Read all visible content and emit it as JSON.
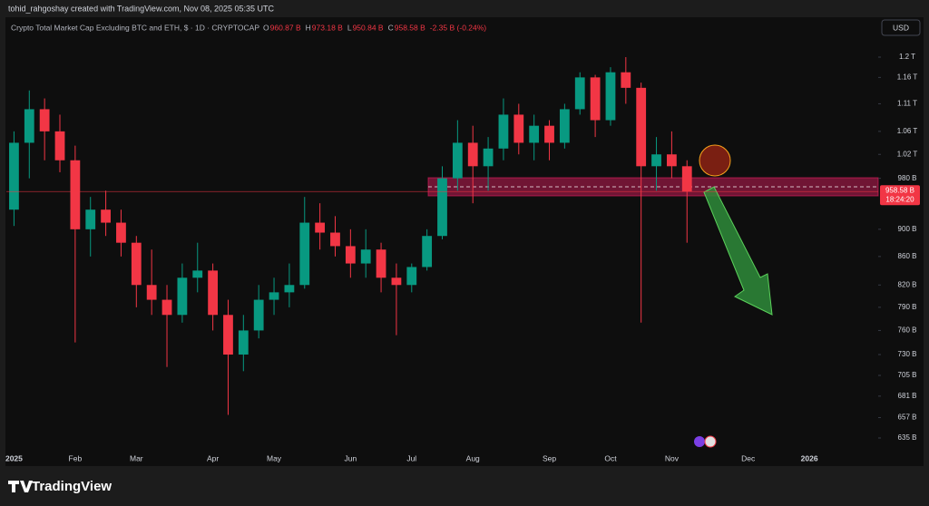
{
  "chart_data": {
    "type": "candlestick",
    "author": "tohid_rahgoshay created with TradingView.com, Nov 08, 2025 05:35 UTC",
    "title": "Crypto Total Market Cap Excluding BTC and ETH, $ · 1D · CRYPTOCAP",
    "ohlc_header": [
      {
        "key": "O",
        "text": "960.87 B"
      },
      {
        "key": "H",
        "text": "973.18 B"
      },
      {
        "key": "L",
        "text": "950.84 B"
      },
      {
        "key": "C",
        "text": "958.58 B"
      }
    ],
    "change": "-2.35 B (-0.24%)",
    "currency": "USD",
    "brand": "TradingView",
    "last_price": {
      "value": 958.58,
      "label": "958.58 B"
    },
    "countdown": "18:24:20",
    "log_scale": true,
    "grid": false,
    "up_color": "#089981",
    "down_color": "#f23645",
    "ylim": [
      635,
      1200
    ],
    "yticks": [
      {
        "value": 1200,
        "label": "1.2 T"
      },
      {
        "value": 1160,
        "label": "1.16 T"
      },
      {
        "value": 1110,
        "label": "1.11 T"
      },
      {
        "value": 1060,
        "label": "1.06 T"
      },
      {
        "value": 1020,
        "label": "1.02 T"
      },
      {
        "value": 980,
        "label": "980 B"
      },
      {
        "value": 900,
        "label": "900 B"
      },
      {
        "value": 860,
        "label": "860 B"
      },
      {
        "value": 820,
        "label": "820 B"
      },
      {
        "value": 790,
        "label": "790 B"
      },
      {
        "value": 760,
        "label": "760 B"
      },
      {
        "value": 730,
        "label": "730 B"
      },
      {
        "value": 705,
        "label": "705 B"
      },
      {
        "value": 681,
        "label": "681 B"
      },
      {
        "value": 657,
        "label": "657 B"
      },
      {
        "value": 635,
        "label": "635 B"
      }
    ],
    "categories": [
      "2025",
      null,
      null,
      null,
      "Feb",
      null,
      null,
      null,
      "Mar",
      null,
      null,
      null,
      null,
      "Apr",
      null,
      null,
      null,
      "May",
      null,
      null,
      null,
      null,
      "Jun",
      null,
      null,
      null,
      "Jul",
      null,
      null,
      null,
      "Aug",
      null,
      null,
      null,
      null,
      "Sep",
      null,
      null,
      null,
      "Oct",
      null,
      null,
      null,
      "Nov",
      null,
      null,
      null,
      null,
      "Dec",
      null,
      null,
      null,
      "2026",
      null,
      null,
      null,
      null
    ],
    "open": [
      930,
      1040,
      1100,
      1060,
      1010,
      900,
      930,
      910,
      880,
      820,
      800,
      780,
      830,
      840,
      780,
      730,
      760,
      800,
      810,
      820,
      910,
      895,
      875,
      850,
      870,
      830,
      820,
      845,
      890,
      980,
      1040,
      1000,
      1030,
      1090,
      1040,
      1070,
      1040,
      1100,
      1160,
      1080,
      1170,
      1140,
      1000,
      1020,
      1000,
      null,
      null,
      null,
      null,
      null,
      null,
      null,
      null,
      null,
      null,
      null,
      null
    ],
    "high": [
      1060,
      1135,
      1120,
      1090,
      1035,
      950,
      960,
      930,
      890,
      870,
      820,
      850,
      880,
      850,
      800,
      780,
      820,
      830,
      850,
      950,
      940,
      920,
      900,
      900,
      880,
      850,
      850,
      900,
      1000,
      1080,
      1070,
      1050,
      1120,
      1110,
      1090,
      1080,
      1110,
      1170,
      1165,
      1180,
      1200,
      1150,
      1050,
      1060,
      1010,
      null,
      null,
      null,
      null,
      null,
      null,
      null,
      null,
      null,
      null,
      null,
      null
    ],
    "low": [
      905,
      980,
      1010,
      990,
      745,
      860,
      890,
      860,
      790,
      780,
      715,
      770,
      810,
      760,
      660,
      710,
      750,
      780,
      790,
      815,
      870,
      860,
      830,
      830,
      810,
      754,
      810,
      840,
      885,
      960,
      940,
      960,
      1010,
      1020,
      1010,
      1010,
      1030,
      1090,
      1050,
      1070,
      1110,
      770,
      960,
      980,
      880,
      null,
      null,
      null,
      null,
      null,
      null,
      null,
      null,
      null,
      null,
      null,
      null
    ],
    "close": [
      1040,
      1100,
      1060,
      1010,
      900,
      930,
      910,
      880,
      820,
      800,
      780,
      830,
      840,
      780,
      730,
      760,
      800,
      810,
      820,
      910,
      895,
      875,
      850,
      870,
      830,
      820,
      845,
      890,
      980,
      1040,
      1000,
      1030,
      1090,
      1040,
      1070,
      1040,
      1100,
      1160,
      1080,
      1170,
      1140,
      1000,
      1020,
      1000,
      958.58,
      null,
      null,
      null,
      null,
      null,
      null,
      null,
      null,
      null,
      null,
      null,
      null
    ]
  }
}
